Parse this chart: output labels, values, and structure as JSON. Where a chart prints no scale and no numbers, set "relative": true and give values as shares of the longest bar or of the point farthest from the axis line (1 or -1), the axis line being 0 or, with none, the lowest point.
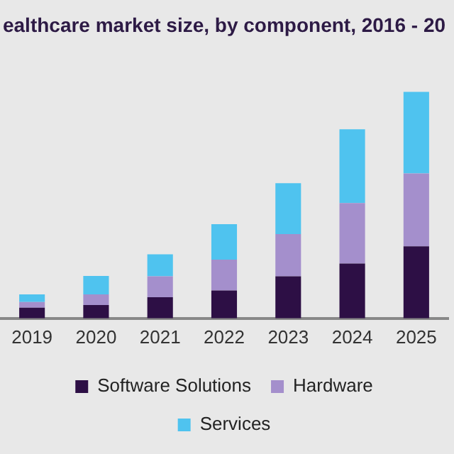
{
  "chart_data": {
    "type": "bar",
    "title": "ealthcare market size, by component, 2016 - 20",
    "categories": [
      "2019",
      "2020",
      "2021",
      "2022",
      "2023",
      "2024",
      "2025"
    ],
    "stacked": true,
    "relative": true,
    "grid": false,
    "legend": "bottom",
    "series": [
      {
        "name": "Software Solutions",
        "color": "#2d0f45",
        "values": [
          0.047,
          0.059,
          0.093,
          0.123,
          0.186,
          0.242,
          0.318
        ]
      },
      {
        "name": "Hardware",
        "color": "#a48fcc",
        "values": [
          0.025,
          0.047,
          0.093,
          0.136,
          0.186,
          0.267,
          0.322
        ]
      },
      {
        "name": "Services",
        "color": "#4fc3ef",
        "values": [
          0.034,
          0.081,
          0.097,
          0.157,
          0.225,
          0.326,
          0.36
        ]
      }
    ]
  }
}
